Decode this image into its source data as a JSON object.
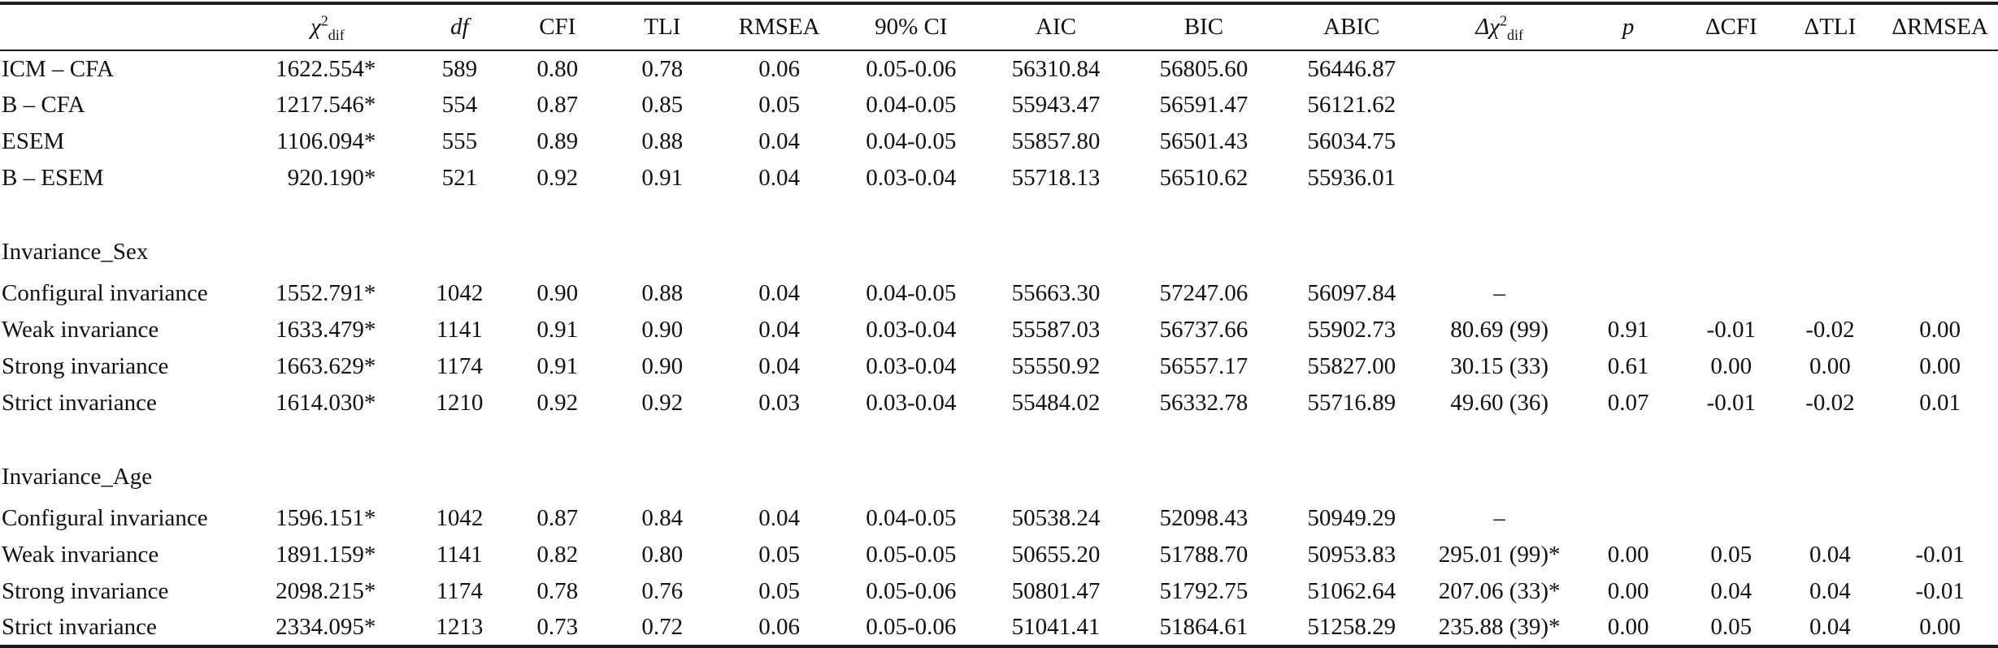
{
  "table": {
    "columns": [
      {
        "key": "model",
        "label": "",
        "align": "left"
      },
      {
        "key": "chi2dif",
        "label_parts": {
          "pre": "χ",
          "sup": "2",
          "sub": "dif"
        },
        "pre_italic": true
      },
      {
        "key": "df",
        "label": "df",
        "italic": true
      },
      {
        "key": "cfi",
        "label": "CFI"
      },
      {
        "key": "tli",
        "label": "TLI"
      },
      {
        "key": "rmsea",
        "label": "RMSEA"
      },
      {
        "key": "ci90",
        "label": "90% CI"
      },
      {
        "key": "aic",
        "label": "AIC"
      },
      {
        "key": "bic",
        "label": "BIC"
      },
      {
        "key": "abic",
        "label": "ABIC"
      },
      {
        "key": "dchi2dif",
        "label_parts": {
          "pre": "Δχ",
          "sup": "2",
          "sub": "dif"
        },
        "pre_italic": true
      },
      {
        "key": "p",
        "label": "p",
        "italic": true
      },
      {
        "key": "dcfi",
        "label": "ΔCFI"
      },
      {
        "key": "dtli",
        "label": "ΔTLI"
      },
      {
        "key": "drmsea",
        "label": "ΔRMSEA"
      }
    ],
    "rows": [
      {
        "type": "data",
        "cells": [
          "ICM – CFA",
          "1622.554*",
          "589",
          "0.80",
          "0.78",
          "0.06",
          "0.05-0.06",
          "56310.84",
          "56805.60",
          "56446.87",
          "",
          "",
          "",
          "",
          ""
        ]
      },
      {
        "type": "data",
        "cells": [
          "B – CFA",
          "1217.546*",
          "554",
          "0.87",
          "0.85",
          "0.05",
          "0.04-0.05",
          "55943.47",
          "56591.47",
          "56121.62",
          "",
          "",
          "",
          "",
          ""
        ]
      },
      {
        "type": "data",
        "cells": [
          "ESEM",
          "1106.094*",
          "555",
          "0.89",
          "0.88",
          "0.04",
          "0.04-0.05",
          "55857.80",
          "56501.43",
          "56034.75",
          "",
          "",
          "",
          "",
          ""
        ]
      },
      {
        "type": "data",
        "cells": [
          "B – ESEM",
          "920.190*",
          "521",
          "0.92",
          "0.91",
          "0.04",
          "0.03-0.04",
          "55718.13",
          "56510.62",
          "55936.01",
          "",
          "",
          "",
          "",
          ""
        ]
      },
      {
        "type": "section",
        "label": "Invariance_Sex"
      },
      {
        "type": "data",
        "cells": [
          "Configural invariance",
          "1552.791*",
          "1042",
          "0.90",
          "0.88",
          "0.04",
          "0.04-0.05",
          "55663.30",
          "57247.06",
          "56097.84",
          "–",
          "",
          "",
          "",
          ""
        ]
      },
      {
        "type": "data",
        "cells": [
          "Weak invariance",
          "1633.479*",
          "1141",
          "0.91",
          "0.90",
          "0.04",
          "0.03-0.04",
          "55587.03",
          "56737.66",
          "55902.73",
          "80.69 (99)",
          "0.91",
          "-0.01",
          "-0.02",
          "0.00"
        ]
      },
      {
        "type": "data",
        "cells": [
          "Strong invariance",
          "1663.629*",
          "1174",
          "0.91",
          "0.90",
          "0.04",
          "0.03-0.04",
          "55550.92",
          "56557.17",
          "55827.00",
          "30.15 (33)",
          "0.61",
          "0.00",
          "0.00",
          "0.00"
        ]
      },
      {
        "type": "data",
        "cells": [
          "Strict invariance",
          "1614.030*",
          "1210",
          "0.92",
          "0.92",
          "0.03",
          "0.03-0.04",
          "55484.02",
          "56332.78",
          "55716.89",
          "49.60 (36)",
          "0.07",
          "-0.01",
          "-0.02",
          "0.01"
        ]
      },
      {
        "type": "section",
        "label": "Invariance_Age"
      },
      {
        "type": "data",
        "cells": [
          "Configural invariance",
          "1596.151*",
          "1042",
          "0.87",
          "0.84",
          "0.04",
          "0.04-0.05",
          "50538.24",
          "52098.43",
          "50949.29",
          "–",
          "",
          "",
          "",
          ""
        ]
      },
      {
        "type": "data",
        "cells": [
          "Weak invariance",
          "1891.159*",
          "1141",
          "0.82",
          "0.80",
          "0.05",
          "0.05-0.05",
          "50655.20",
          "51788.70",
          "50953.83",
          "295.01 (99)*",
          "0.00",
          "0.05",
          "0.04",
          "-0.01"
        ]
      },
      {
        "type": "data",
        "cells": [
          "Strong invariance",
          "2098.215*",
          "1174",
          "0.78",
          "0.76",
          "0.05",
          "0.05-0.06",
          "50801.47",
          "51792.75",
          "51062.64",
          "207.06 (33)*",
          "0.00",
          "0.04",
          "0.04",
          "-0.01"
        ]
      },
      {
        "type": "data",
        "cells": [
          "Strict invariance",
          "2334.095*",
          "1213",
          "0.73",
          "0.72",
          "0.06",
          "0.05-0.06",
          "51041.41",
          "51864.61",
          "51258.29",
          "235.88 (39)*",
          "0.00",
          "0.05",
          "0.04",
          "0.00"
        ]
      }
    ]
  },
  "colors": {
    "text": "#111111",
    "rule": "#1c1c1c",
    "background": "#ffffff"
  }
}
